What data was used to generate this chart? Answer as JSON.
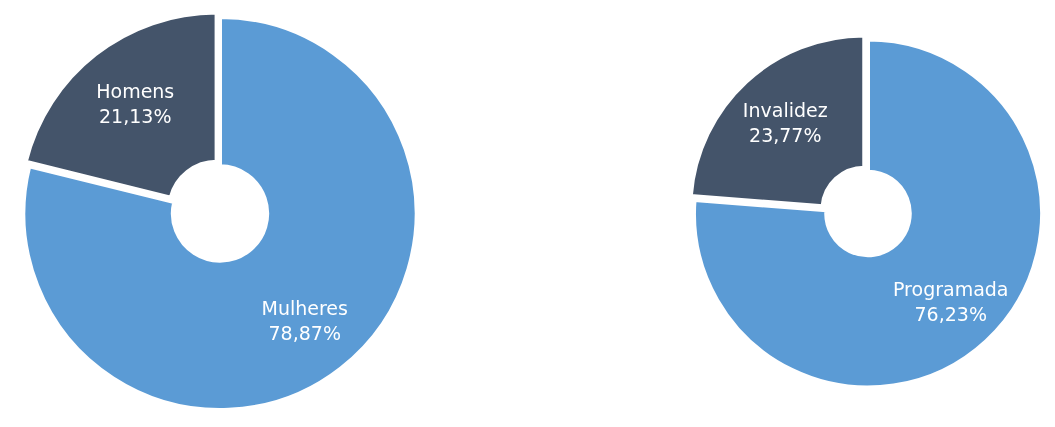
{
  "chart_data": [
    {
      "type": "donut",
      "categories": [
        "Mulheres",
        "Homens"
      ],
      "values": [
        78.87,
        21.13
      ],
      "value_labels": [
        "78,87%",
        "21,13%"
      ],
      "colors": [
        "#5b9bd5",
        "#44546a"
      ]
    },
    {
      "type": "donut",
      "categories": [
        "Programada",
        "Invalidez"
      ],
      "values": [
        76.23,
        23.77
      ],
      "value_labels": [
        "76,23%",
        "23,77%"
      ],
      "colors": [
        "#5b9bd5",
        "#44546a"
      ]
    }
  ]
}
